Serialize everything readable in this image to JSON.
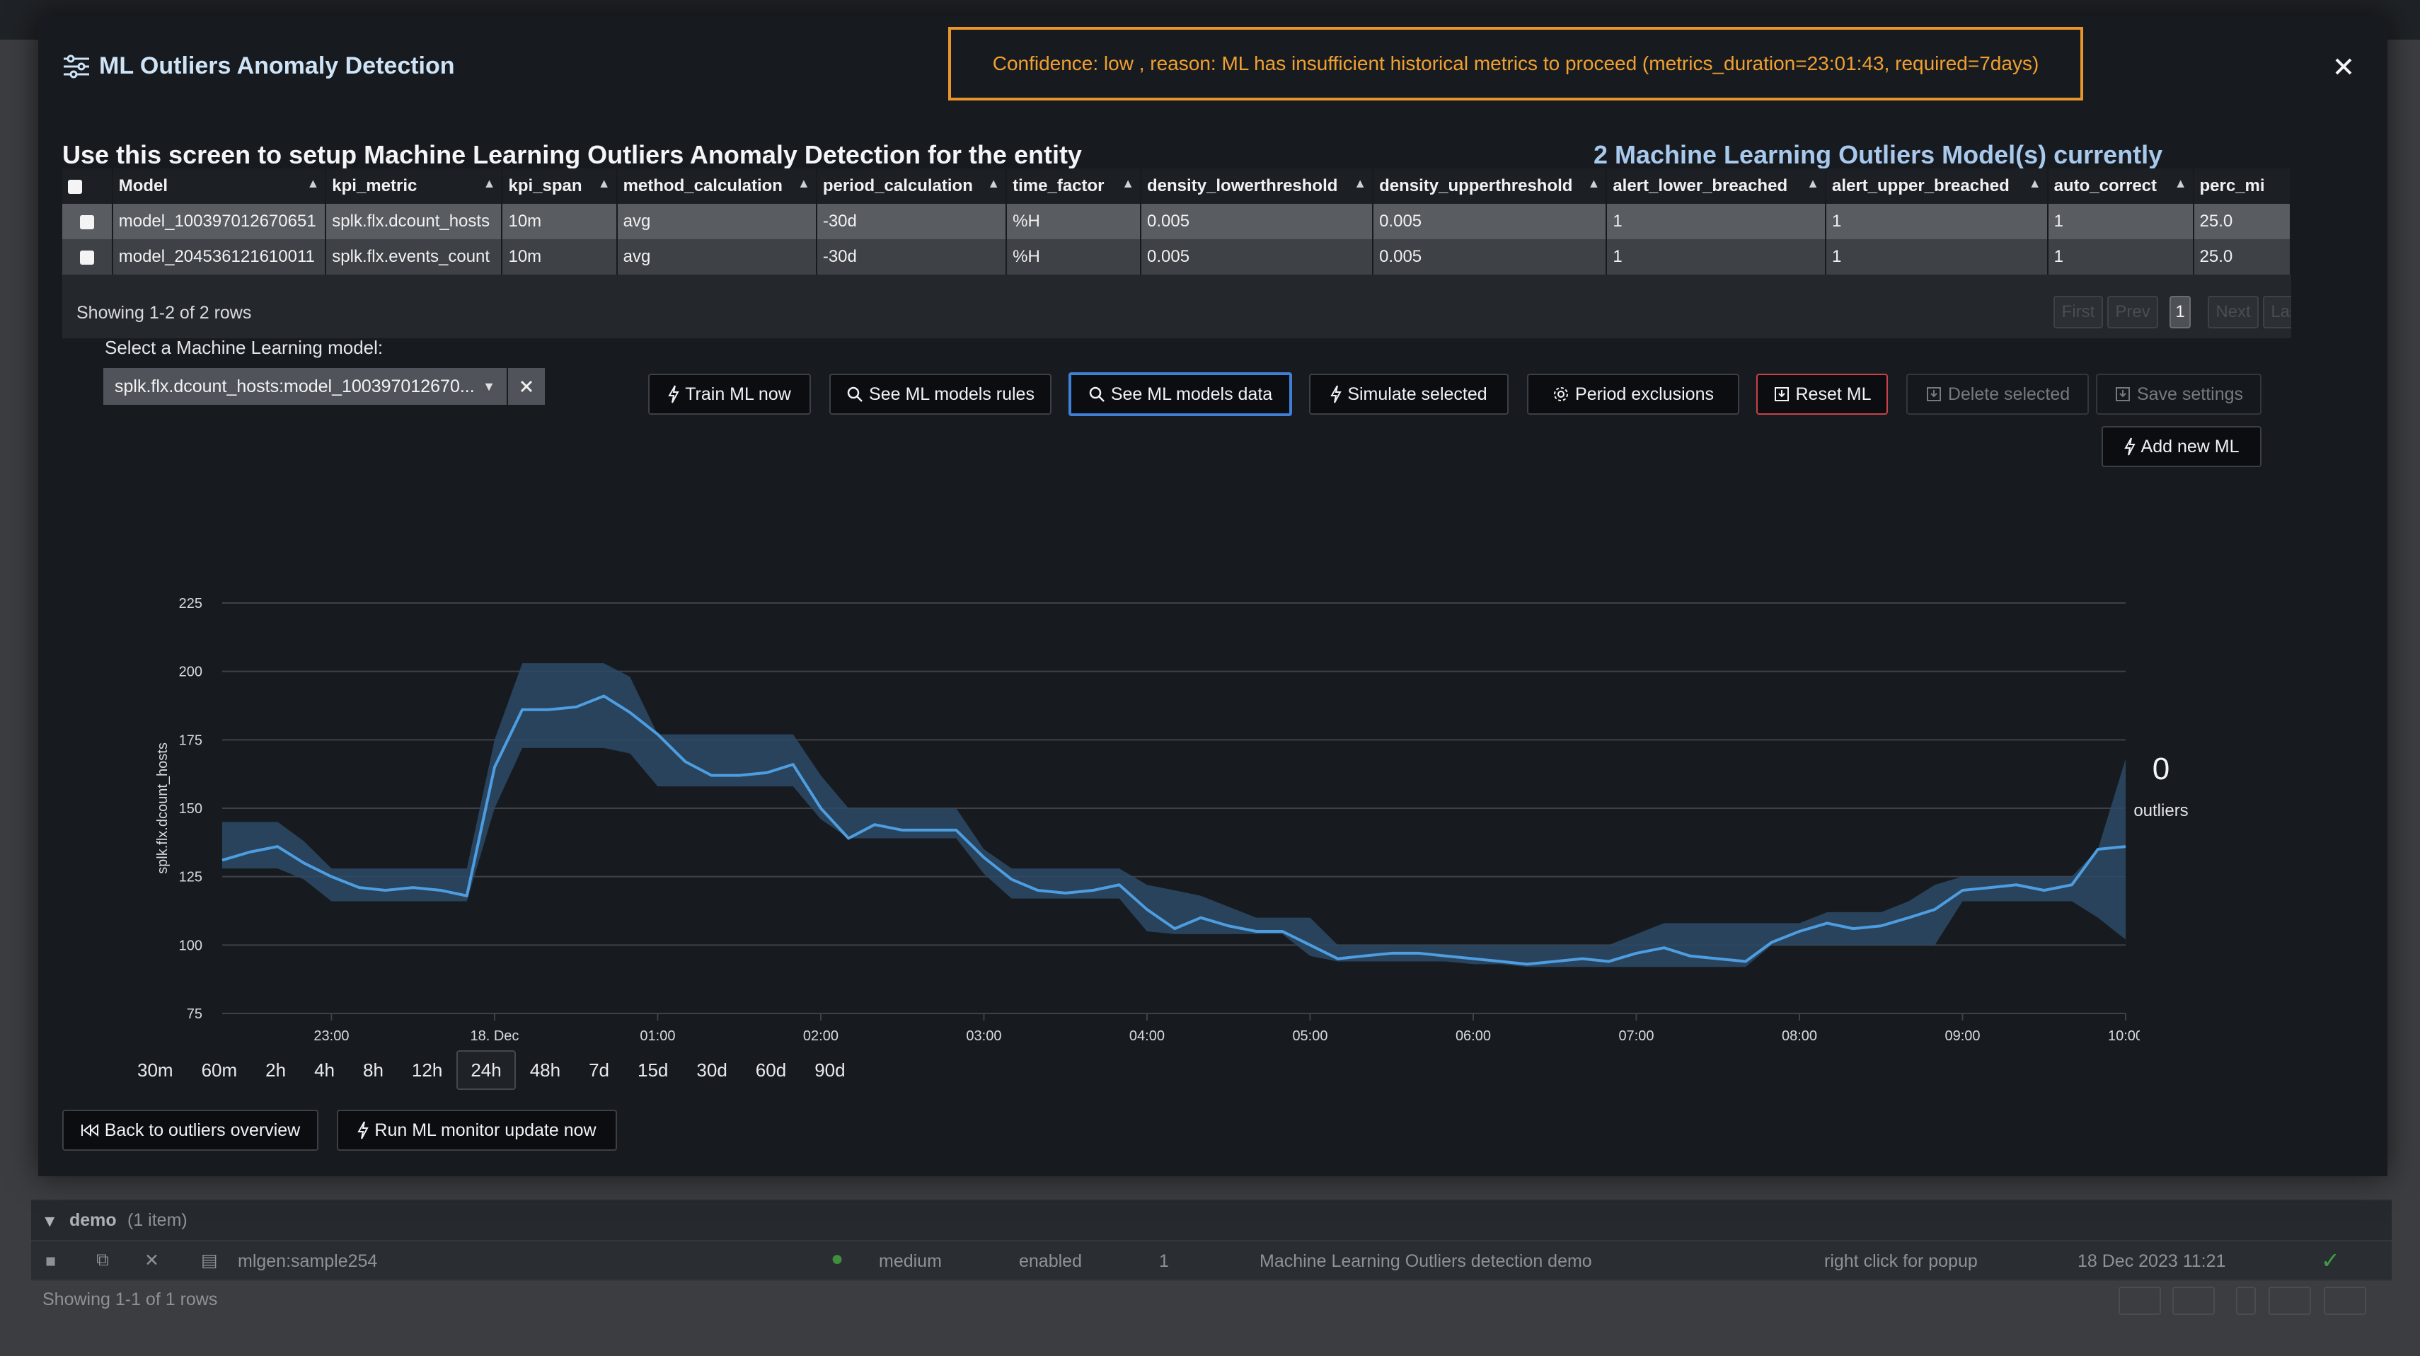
{
  "modal": {
    "title": "ML Outliers Anomaly Detection",
    "alert": "Confidence: low , reason: ML has insufficient historical metrics to proceed (metrics_duration=23:01:43, required=7days)",
    "heading": "Use this screen to setup Machine Learning Outliers Anomaly Detection for the entity",
    "models_count": "2 Machine Learning Outliers Model(s) currently"
  },
  "table": {
    "columns": [
      "Model",
      "kpi_metric",
      "kpi_span",
      "method_calculation",
      "period_calculation",
      "time_factor",
      "density_lowerthreshold",
      "density_upperthreshold",
      "alert_lower_breached",
      "alert_upper_breached",
      "auto_correct",
      "perc_mi"
    ],
    "rows": [
      [
        "model_100397012670651",
        "splk.flx.dcount_hosts",
        "10m",
        "avg",
        "-30d",
        "%H",
        "0.005",
        "0.005",
        "1",
        "1",
        "1",
        "25.0"
      ],
      [
        "model_204536121610011",
        "splk.flx.events_count",
        "10m",
        "avg",
        "-30d",
        "%H",
        "0.005",
        "0.005",
        "1",
        "1",
        "1",
        "25.0"
      ]
    ],
    "showing": "Showing 1-2 of 2 rows",
    "pagination": {
      "first": "First",
      "prev": "Prev",
      "page": "1",
      "next": "Next",
      "last": "Last"
    }
  },
  "selector": {
    "label": "Select a Machine Learning model:",
    "value": "splk.flx.dcount_hosts:model_100397012670..."
  },
  "actions": {
    "train": "Train ML now",
    "rules": "See ML models rules",
    "data": "See ML models data",
    "simulate": "Simulate selected",
    "exclusions": "Period exclusions",
    "reset": "Reset ML",
    "delete": "Delete selected",
    "save": "Save settings",
    "add": "Add new ML"
  },
  "chart_data": {
    "type": "line",
    "ylabel": "splk.flx.dcount_hosts",
    "y_ticks": [
      "225",
      "200",
      "175",
      "150",
      "125",
      "100",
      "75"
    ],
    "ylim": [
      75,
      225
    ],
    "x_ticks": [
      "23:00",
      "18. Dec",
      "01:00",
      "02:00",
      "03:00",
      "04:00",
      "05:00",
      "06:00",
      "07:00",
      "08:00",
      "09:00",
      "10:00"
    ],
    "x_range_hours": [
      -0.67,
      11.0
    ],
    "series": [
      {
        "values_hours": [
          -0.67,
          -0.5,
          -0.33,
          -0.17,
          0.0,
          0.17,
          0.33,
          0.5,
          0.67,
          0.83,
          1.0,
          1.17,
          1.33,
          1.5,
          1.67,
          1.83,
          2.0,
          2.17,
          2.33,
          2.5,
          2.67,
          2.83,
          3.0,
          3.17,
          3.33,
          3.5,
          3.67,
          3.83,
          4.0,
          4.17,
          4.33,
          4.5,
          4.67,
          4.83,
          5.0,
          5.17,
          5.33,
          5.5,
          5.67,
          5.83,
          6.0,
          6.17,
          6.33,
          6.5,
          6.67,
          6.83,
          7.0,
          7.17,
          7.33,
          7.5,
          7.67,
          7.83,
          8.0,
          8.17,
          8.33,
          8.5,
          8.67,
          8.83,
          9.0,
          9.17,
          9.33,
          9.5,
          9.67,
          9.83,
          10.0,
          10.17,
          10.33,
          10.5,
          10.67,
          10.83,
          11.0
        ],
        "values": [
          131,
          134,
          136,
          130,
          125,
          121,
          120,
          121,
          120,
          118,
          165,
          186,
          186,
          187,
          191,
          185,
          177,
          167,
          162,
          162,
          163,
          166,
          150,
          139,
          144,
          142,
          142,
          142,
          132,
          124,
          120,
          119,
          120,
          122,
          113,
          106,
          110,
          107,
          105,
          105,
          100,
          95,
          96,
          97,
          97,
          96,
          95,
          94,
          93,
          94,
          95,
          94,
          97,
          99,
          96,
          95,
          94,
          101,
          105,
          108,
          106,
          107,
          110,
          113,
          120,
          121,
          122,
          120,
          122,
          135,
          136
        ]
      }
    ],
    "band_upper": [
      145,
      145,
      145,
      138,
      128,
      128,
      128,
      128,
      128,
      128,
      175,
      203,
      203,
      203,
      203,
      198,
      177,
      177,
      177,
      177,
      177,
      177,
      162,
      150,
      150,
      150,
      150,
      150,
      135,
      128,
      128,
      128,
      128,
      128,
      122,
      120,
      118,
      114,
      110,
      110,
      110,
      100,
      100,
      100,
      100,
      100,
      100,
      100,
      100,
      100,
      100,
      100,
      104,
      108,
      108,
      108,
      108,
      108,
      108,
      112,
      112,
      112,
      116,
      122,
      125,
      125,
      125,
      125,
      125,
      135,
      168
    ],
    "band_lower": [
      128,
      128,
      128,
      124,
      116,
      116,
      116,
      116,
      116,
      116,
      150,
      172,
      172,
      172,
      172,
      170,
      158,
      158,
      158,
      158,
      158,
      158,
      146,
      139,
      139,
      139,
      139,
      139,
      126,
      117,
      117,
      117,
      117,
      117,
      105,
      104,
      104,
      104,
      104,
      104,
      96,
      94,
      94,
      94,
      94,
      94,
      93,
      93,
      92,
      92,
      92,
      92,
      92,
      92,
      92,
      92,
      92,
      100,
      100,
      100,
      100,
      100,
      100,
      100,
      116,
      116,
      116,
      116,
      116,
      110,
      102
    ],
    "outliers_count": "0",
    "outliers_label": "outliers"
  },
  "ranges": [
    "30m",
    "60m",
    "2h",
    "4h",
    "8h",
    "12h",
    "24h",
    "48h",
    "7d",
    "15d",
    "30d",
    "60d",
    "90d"
  ],
  "active_range": "24h",
  "footer_buttons": {
    "back": "Back to outliers overview",
    "run": "Run ML monitor update now"
  },
  "background": {
    "group_name": "demo",
    "group_count": "(1 item)",
    "item": [
      "mlgen:sample254",
      "medium",
      "enabled",
      "1",
      "Machine Learning Outliers detection demo",
      "right click for popup",
      "18 Dec 2023 11:21"
    ],
    "showing": "Showing 1-1 of 1 rows"
  },
  "colors": {
    "accent": "#3f7fd6",
    "alert": "#f0a030",
    "line": "#4d9de0",
    "band": "#2b4a66",
    "danger": "#c9424a"
  }
}
